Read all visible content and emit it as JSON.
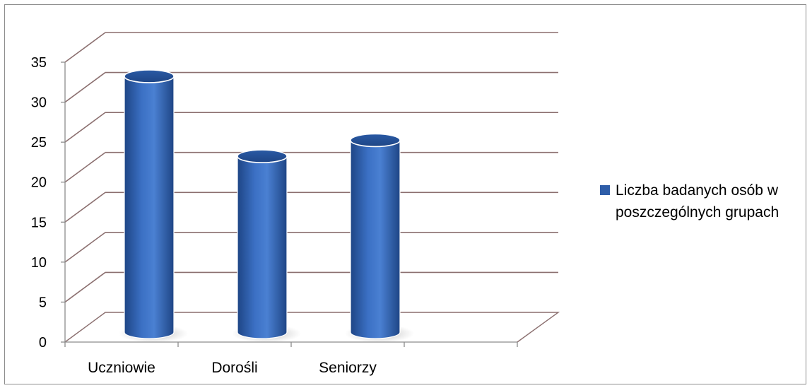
{
  "chart_data": {
    "type": "bar",
    "style": "3d-cylinder",
    "categories": [
      "Uczniowie",
      "Dorośli",
      "Seniorzy"
    ],
    "series": [
      {
        "name": "Liczba badanych osób w poszczególnych grupach",
        "values": [
          32,
          22,
          24
        ],
        "color": "#2E5DA8"
      }
    ],
    "y_ticks": [
      "0",
      "5",
      "10",
      "15",
      "20",
      "25",
      "30",
      "35"
    ],
    "ylim": [
      0,
      35
    ],
    "grid": true,
    "legend_position": "right",
    "legend_lines": [
      "Liczba badanych osób w",
      "poszczególnych grupach"
    ],
    "colors": {
      "bar_dark": "#1E4585",
      "bar_mid": "#3A6DBF",
      "bar_light": "#4A7FD0",
      "grid": "#8B6F6F",
      "axis": "#8C8C8C"
    }
  }
}
